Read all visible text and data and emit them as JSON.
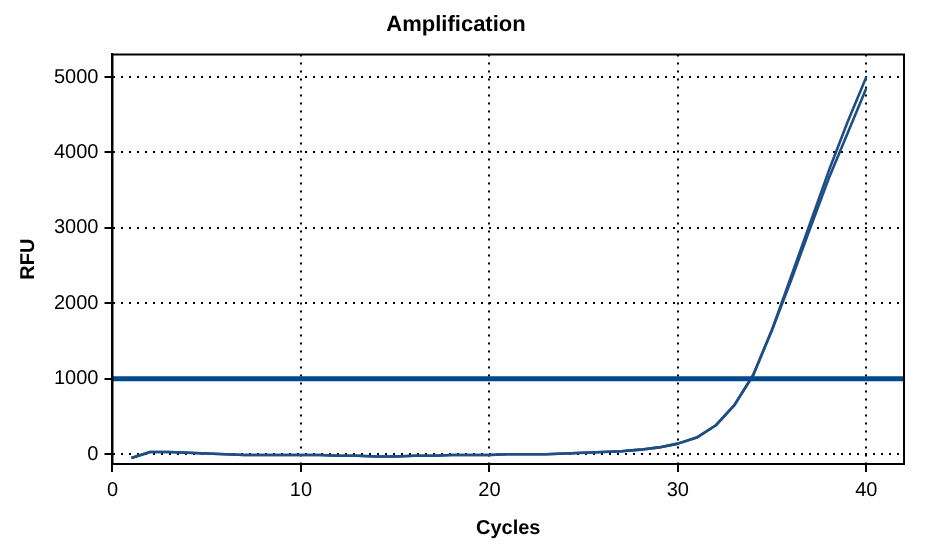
{
  "chart_data": {
    "type": "line",
    "title": "Amplification",
    "xlabel": "Cycles",
    "ylabel": "RFU",
    "x": [
      1,
      2,
      3,
      4,
      5,
      6,
      7,
      8,
      9,
      10,
      11,
      12,
      13,
      14,
      15,
      16,
      17,
      18,
      19,
      20,
      21,
      22,
      23,
      24,
      25,
      26,
      27,
      28,
      29,
      30,
      31,
      32,
      33,
      34,
      35,
      36,
      37,
      38,
      39,
      40
    ],
    "series": [
      {
        "color": "#1f4e84",
        "values": [
          -50,
          30,
          30,
          20,
          10,
          0,
          -10,
          -10,
          -10,
          -10,
          -10,
          -20,
          -20,
          -30,
          -30,
          -20,
          -20,
          -10,
          -10,
          -10,
          0,
          0,
          0,
          10,
          20,
          30,
          40,
          60,
          90,
          140,
          220,
          380,
          650,
          1050,
          1650,
          2350,
          3050,
          3750,
          4400,
          5000
        ]
      },
      {
        "color": "#1f4e84",
        "values": [
          -50,
          30,
          30,
          20,
          10,
          0,
          -10,
          -10,
          -10,
          -10,
          -10,
          -20,
          -20,
          -30,
          -30,
          -20,
          -20,
          -10,
          -10,
          -10,
          0,
          0,
          0,
          10,
          20,
          30,
          40,
          60,
          90,
          140,
          220,
          380,
          650,
          1050,
          1650,
          2300,
          2980,
          3650,
          4250,
          4850
        ]
      }
    ],
    "ref_lines": [
      {
        "axis": "y",
        "value": 1000,
        "color": "#00498a"
      }
    ],
    "xlim": [
      0,
      42
    ],
    "xticks": [
      0,
      10,
      20,
      30,
      40
    ],
    "ylim": [
      -130,
      5300
    ],
    "yticks": [
      0,
      1000,
      2000,
      3000,
      4000,
      5000
    ],
    "grid": true,
    "legend": false,
    "marker": "none",
    "line_style": "solid"
  }
}
